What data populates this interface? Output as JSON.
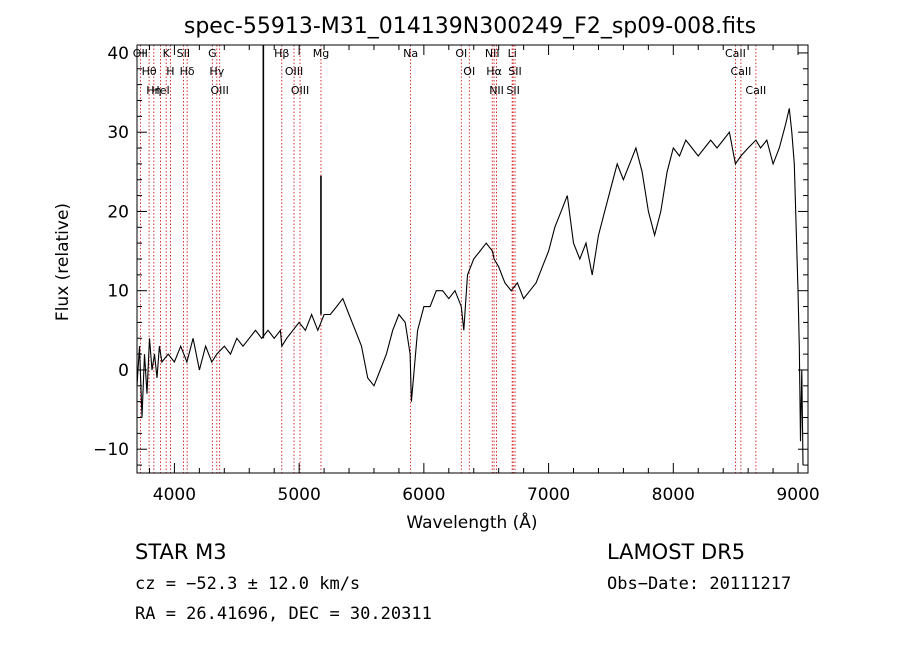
{
  "chart_data": {
    "type": "line",
    "title": "spec-55913-M31_014139N300249_F2_sp09-008.fits",
    "xlabel": "Wavelength (Å)",
    "ylabel": "Flux (relative)",
    "xlim": [
      3700,
      9080
    ],
    "ylim": [
      -13,
      41
    ],
    "xticks": [
      4000,
      5000,
      6000,
      7000,
      8000,
      9000
    ],
    "yticks": [
      -10,
      0,
      10,
      20,
      30,
      40
    ],
    "grid": false,
    "series": [
      {
        "x": [
          3700,
          3720,
          3740,
          3760,
          3780,
          3800,
          3820,
          3840,
          3860,
          3880,
          3900,
          3950,
          4000,
          4050,
          4100,
          4150,
          4200,
          4250,
          4300,
          4340,
          4400,
          4450,
          4500,
          4550,
          4600,
          4650,
          4700,
          4750,
          4800,
          4850,
          4861,
          4900,
          4950,
          5000,
          5050,
          5100,
          5150,
          5175,
          5200,
          5250,
          5300,
          5350,
          5400,
          5450,
          5500,
          5550,
          5600,
          5650,
          5700,
          5750,
          5800,
          5850,
          5890,
          5900,
          5950,
          6000,
          6050,
          6100,
          6150,
          6200,
          6250,
          6300,
          6320,
          6350,
          6400,
          6450,
          6500,
          6550,
          6563,
          6600,
          6650,
          6700,
          6750,
          6800,
          6850,
          6900,
          6950,
          7000,
          7050,
          7100,
          7150,
          7200,
          7250,
          7300,
          7350,
          7400,
          7450,
          7500,
          7550,
          7600,
          7650,
          7700,
          7750,
          7800,
          7850,
          7900,
          7950,
          8000,
          8050,
          8100,
          8150,
          8200,
          8250,
          8300,
          8350,
          8400,
          8450,
          8498,
          8542,
          8600,
          8662,
          8700,
          8750,
          8800,
          8850,
          8900,
          8930,
          8950,
          8970,
          9000,
          9010,
          9020,
          9030,
          9040
        ],
        "y": [
          -2,
          3,
          -6,
          2,
          -3,
          4,
          0,
          2,
          -1,
          3,
          1,
          2,
          1,
          3,
          1,
          4,
          0,
          3,
          1,
          2,
          3,
          2,
          4,
          3,
          4,
          5,
          4,
          5,
          4,
          5,
          3,
          4,
          5,
          6,
          5,
          7,
          5,
          6,
          7,
          7,
          8,
          9,
          7,
          5,
          3,
          -1,
          -2,
          0,
          2,
          5,
          7,
          6,
          2,
          -4,
          5,
          8,
          8,
          10,
          10,
          9,
          10,
          8,
          5,
          12,
          14,
          15,
          16,
          15,
          14,
          13,
          11,
          10,
          11,
          9,
          10,
          11,
          13,
          15,
          18,
          20,
          22,
          16,
          14,
          16,
          12,
          17,
          20,
          23,
          26,
          24,
          26,
          28,
          25,
          20,
          17,
          20,
          25,
          28,
          27,
          29,
          28,
          27,
          28,
          29,
          28,
          29,
          30,
          26,
          27,
          28,
          29,
          28,
          29,
          26,
          28,
          31,
          33,
          30,
          26,
          10,
          3,
          -9,
          0,
          -12
        ]
      }
    ],
    "line_markers": [
      {
        "label": "OII",
        "x": 3727
      },
      {
        "label": "Hθ",
        "x": 3797
      },
      {
        "label": "Hη",
        "x": 3835
      },
      {
        "label": "K",
        "x": 3934
      },
      {
        "label": "H",
        "x": 3968
      },
      {
        "label": "HeI",
        "x": 3889
      },
      {
        "label": "SII",
        "x": 4072
      },
      {
        "label": "Hδ",
        "x": 4102
      },
      {
        "label": "G",
        "x": 4304
      },
      {
        "label": "Hγ",
        "x": 4340
      },
      {
        "label": "OIII",
        "x": 4363
      },
      {
        "label": "Hβ",
        "x": 4861
      },
      {
        "label": "OIII",
        "x": 4959
      },
      {
        "label": "OIII",
        "x": 5007
      },
      {
        "label": "Mg",
        "x": 5175
      },
      {
        "label": "Na",
        "x": 5894
      },
      {
        "label": "OI",
        "x": 6300
      },
      {
        "label": "OI",
        "x": 6364
      },
      {
        "label": "NII",
        "x": 6548
      },
      {
        "label": "Hα",
        "x": 6563
      },
      {
        "label": "NII",
        "x": 6583
      },
      {
        "label": "Li",
        "x": 6708
      },
      {
        "label": "SII",
        "x": 6716
      },
      {
        "label": "SII",
        "x": 6731
      },
      {
        "label": "CaII",
        "x": 8498
      },
      {
        "label": "CaII",
        "x": 8542
      },
      {
        "label": "CaII",
        "x": 8662
      }
    ],
    "spikes": [
      {
        "x": 4713,
        "y_top": 41,
        "y_bottom": 4
      },
      {
        "x": 5175,
        "y_top": 24.5,
        "y_bottom": 7
      }
    ]
  },
  "info": {
    "class_line": "STAR    M3",
    "survey": "LAMOST DR5",
    "cz": "cz = −52.3 ± 12.0 km/s",
    "obs_date": "Obs−Date: 20111217",
    "coords": "RA =  26.41696, DEC =  30.20311"
  },
  "colors": {
    "spectrum": "#000000",
    "marker": "#cc0000",
    "axis": "#000000"
  }
}
